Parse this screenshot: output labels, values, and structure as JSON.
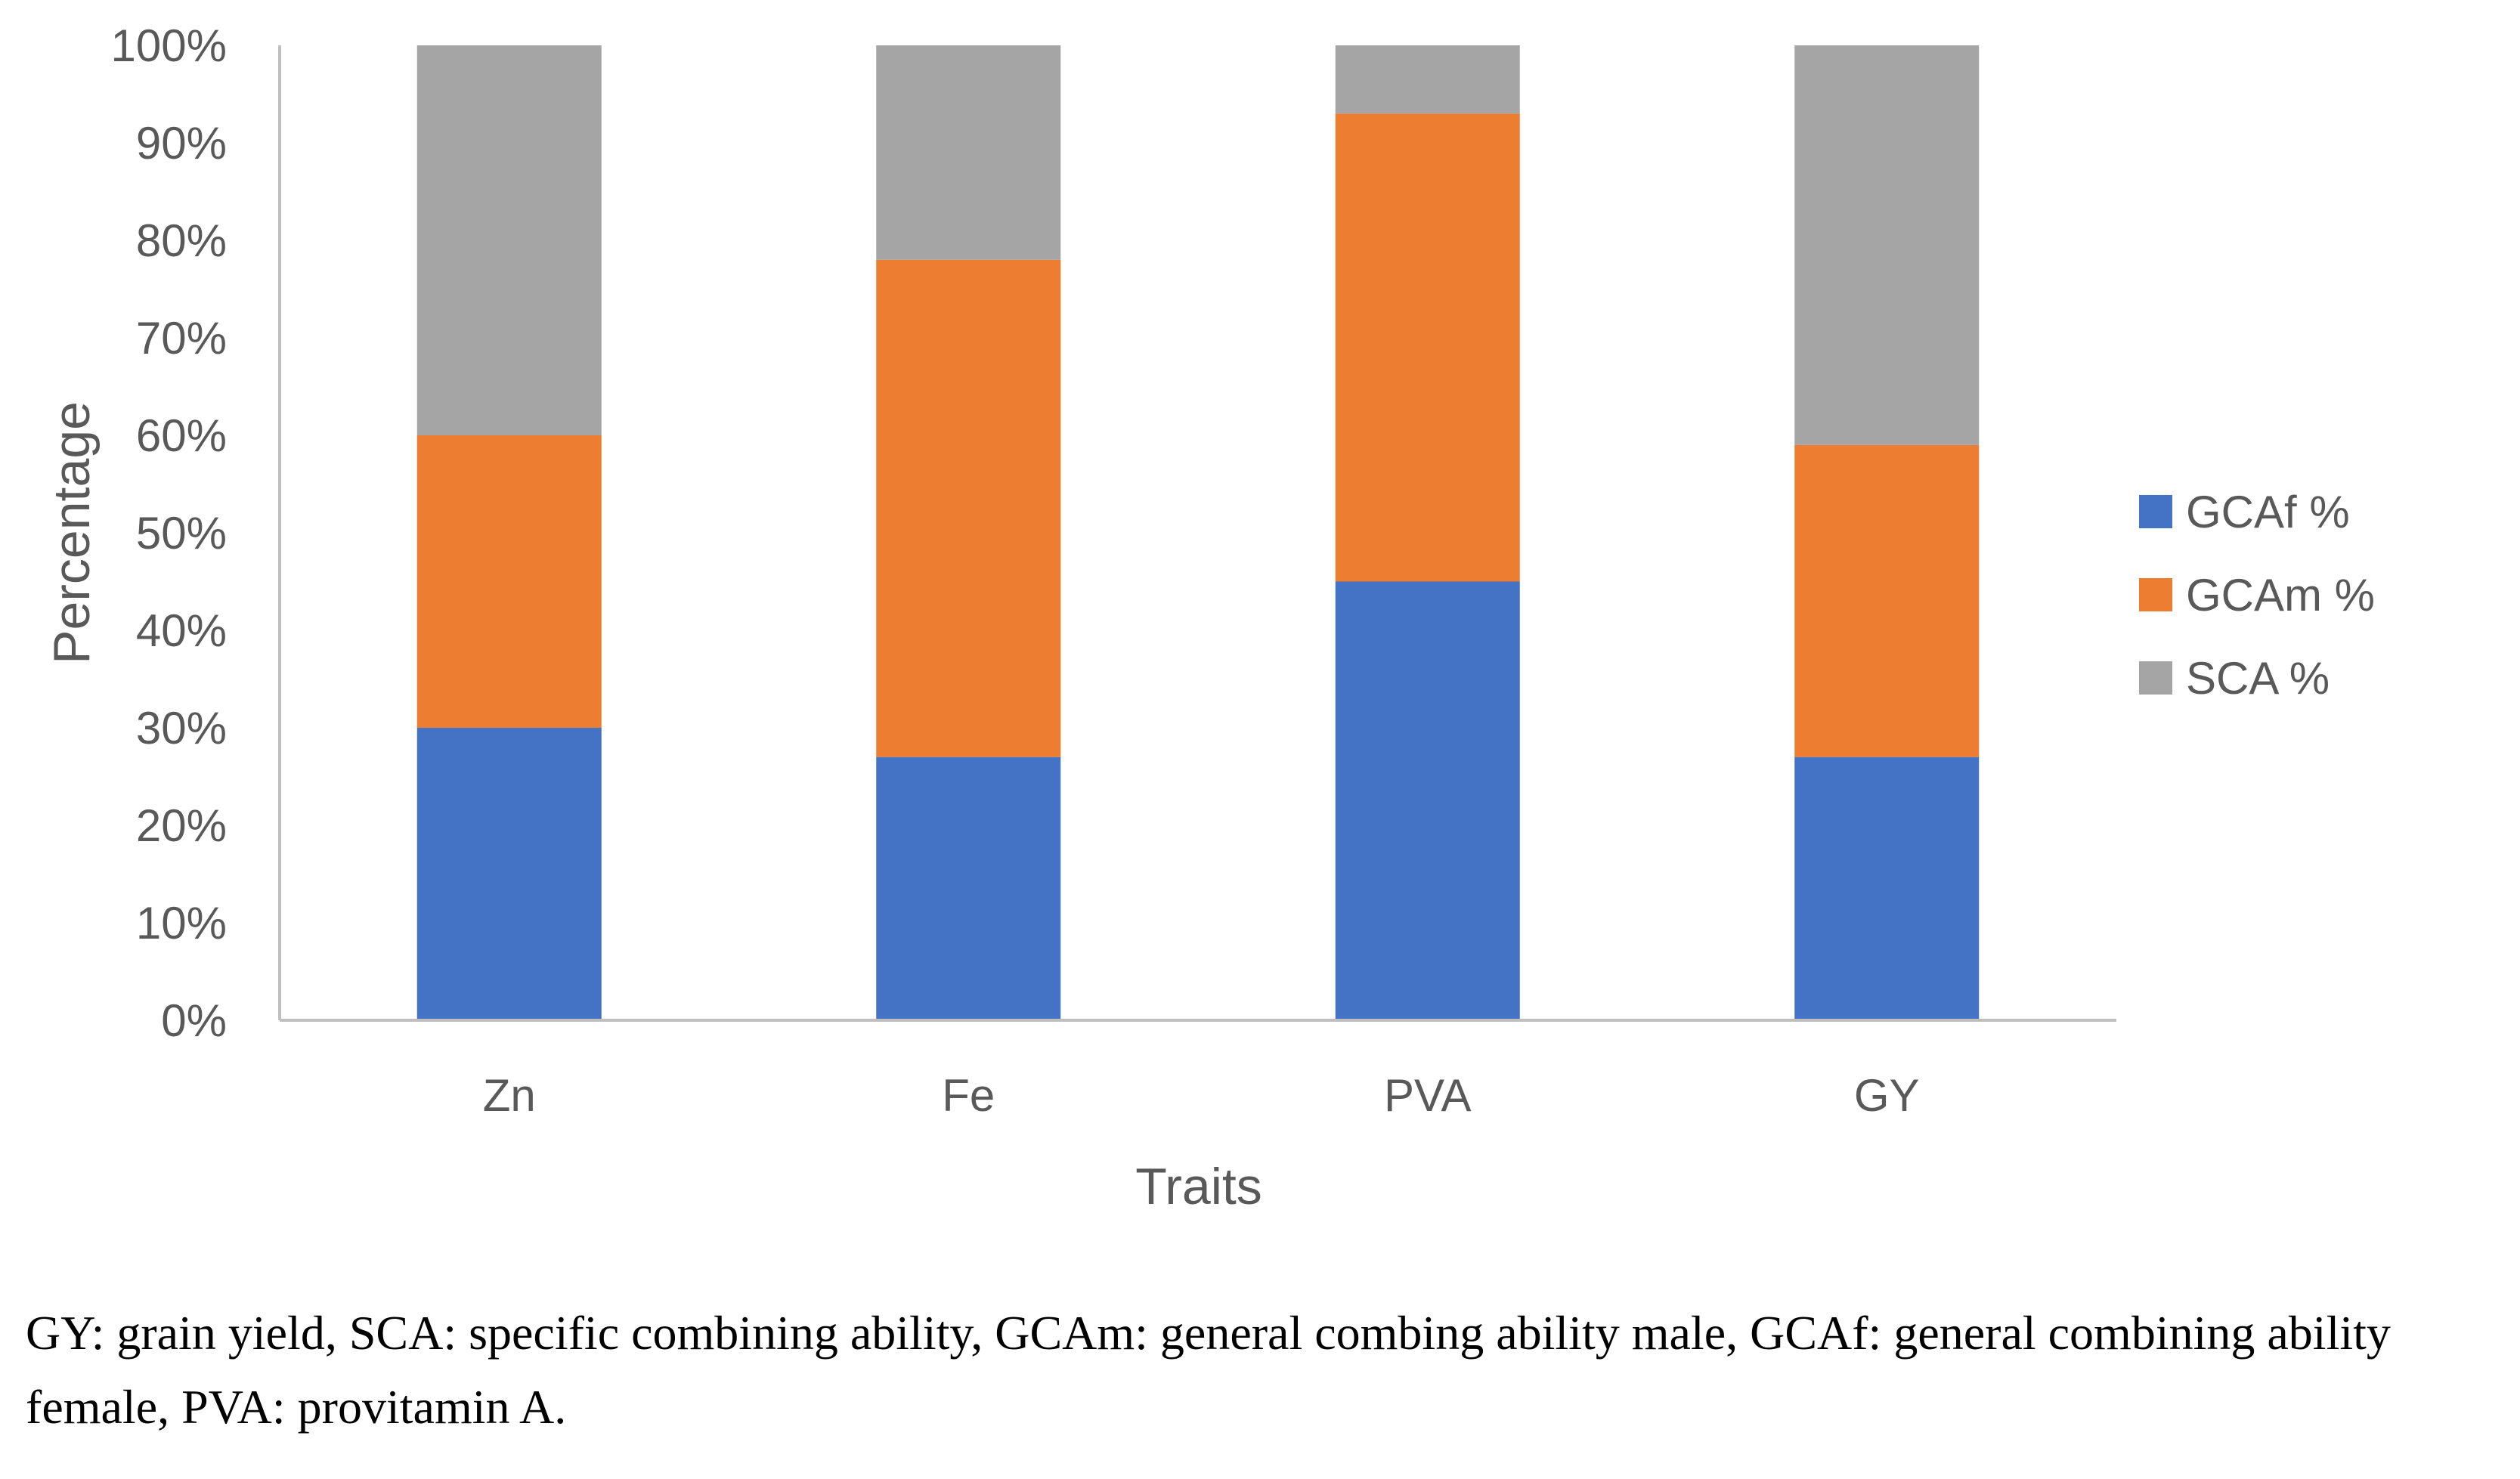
{
  "chart_data": {
    "type": "bar",
    "stacked": true,
    "normalized": true,
    "categories": [
      "Zn",
      "Fe",
      "PVA",
      "GY"
    ],
    "series": [
      {
        "name": "GCAf %",
        "values": [
          30,
          27,
          45,
          27
        ]
      },
      {
        "name": "GCAm %",
        "values": [
          30,
          51,
          48,
          32
        ]
      },
      {
        "name": "SCA %",
        "values": [
          40,
          22,
          7,
          41
        ]
      }
    ],
    "title": "",
    "xlabel": "Traits",
    "ylabel": "Percentage",
    "ylim": [
      0,
      100
    ],
    "yticks": [
      "0%",
      "10%",
      "20%",
      "30%",
      "40%",
      "50%",
      "60%",
      "70%",
      "80%",
      "90%",
      "100%"
    ],
    "grid": false,
    "legend_position": "right"
  },
  "colors": {
    "GCAf %": "#4472C4",
    "GCAm %": "#ED7D31",
    "SCA %": "#A5A5A5",
    "axis": "#BFBFBF",
    "text": "#595959"
  },
  "caption": "GY: grain yield, SCA: specific combining ability, GCAm: general combing ability male, GCAf: general combining ability female, PVA: provitamin A."
}
